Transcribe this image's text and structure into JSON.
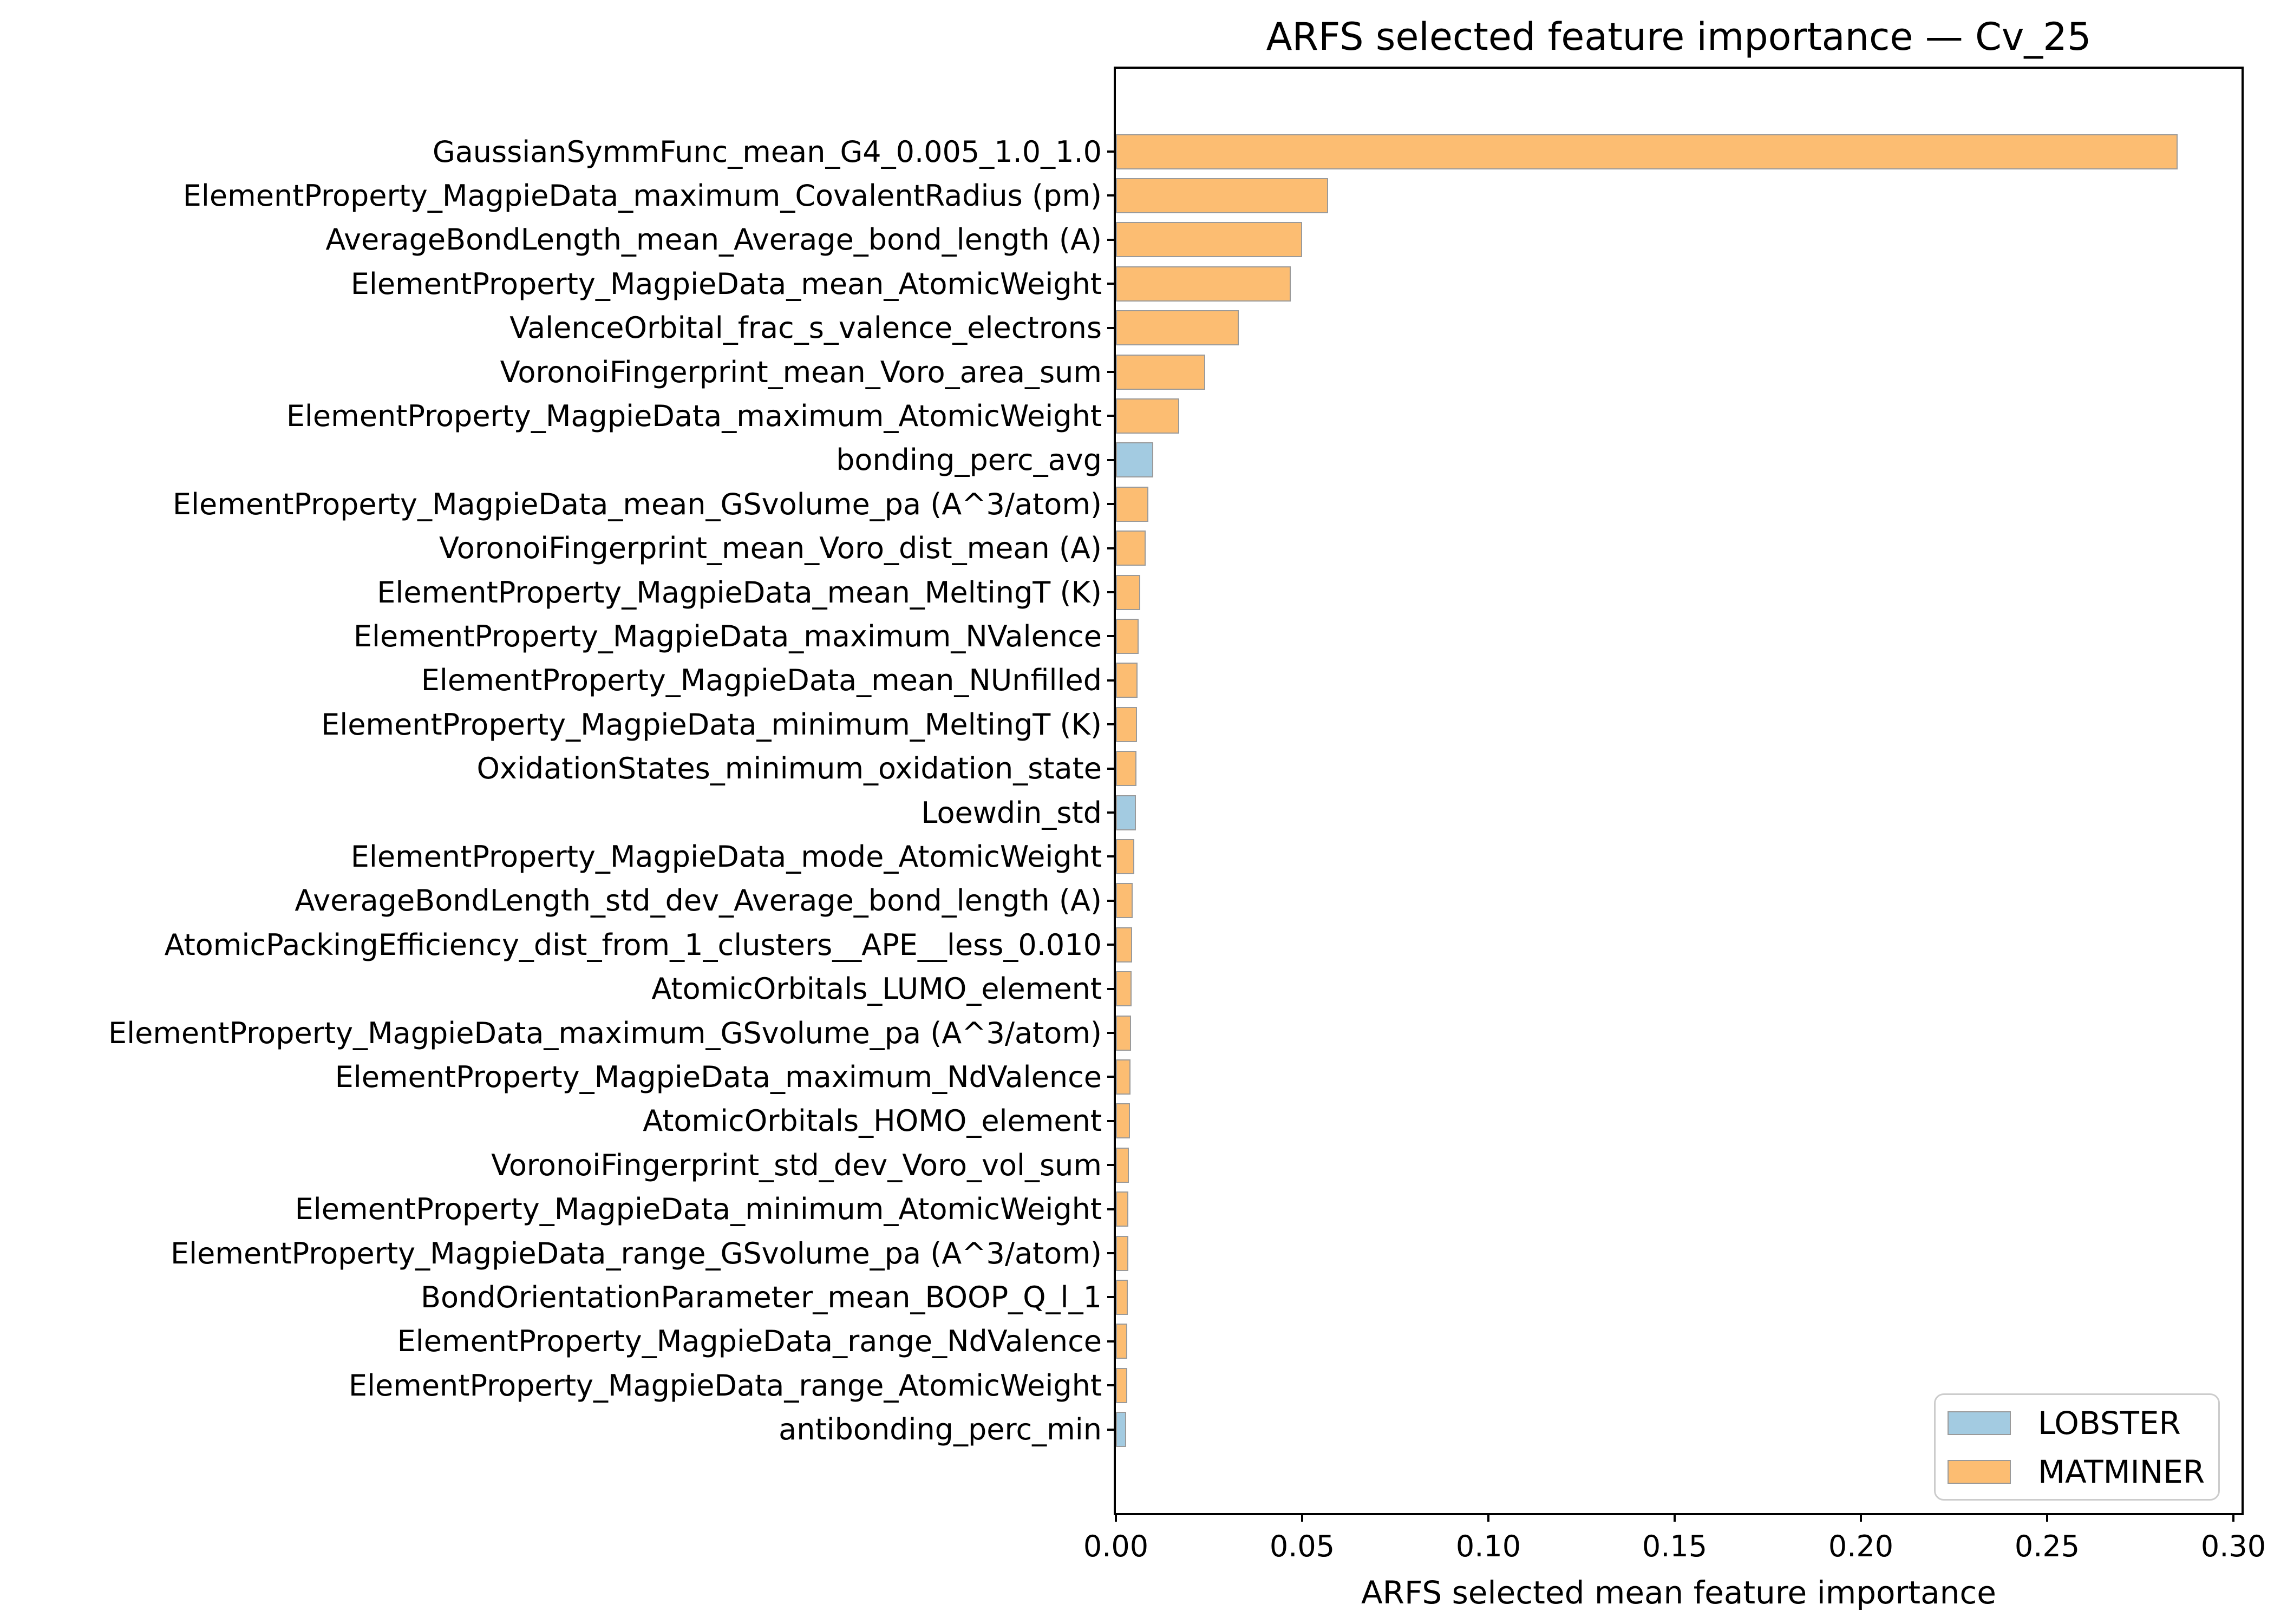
{
  "figure": {
    "title": "ARFS selected feature importance — Cv_25",
    "xlabel": "ARFS selected mean feature importance"
  },
  "legend": {
    "items": [
      {
        "label": "LOBSTER",
        "color": "#a3cbe1"
      },
      {
        "label": "MATMINER",
        "color": "#fcbd72"
      }
    ]
  },
  "chart_data": {
    "type": "bar",
    "orientation": "horizontal",
    "title": "ARFS selected feature importance — Cv_25",
    "xlabel": "ARFS selected mean feature importance",
    "ylabel": "",
    "xlim": [
      0,
      0.302
    ],
    "grid": false,
    "legend_position": "lower right",
    "x_tick_labels": [
      "0.00",
      "0.05",
      "0.10",
      "0.15",
      "0.20",
      "0.25",
      "0.30"
    ],
    "x_tick_values": [
      0.0,
      0.05,
      0.1,
      0.15,
      0.2,
      0.25,
      0.3
    ],
    "series_colors": {
      "LOBSTER": "#a3cbe1",
      "MATMINER": "#fcbd72"
    },
    "bar_edge_color": "#9a9a9a",
    "bars": [
      {
        "label": "GaussianSymmFunc_mean_G4_0.005_1.0_1.0",
        "value": 0.285,
        "group": "MATMINER"
      },
      {
        "label": "ElementProperty_MagpieData_maximum_CovalentRadius (pm)",
        "value": 0.057,
        "group": "MATMINER"
      },
      {
        "label": "AverageBondLength_mean_Average_bond_length (A)",
        "value": 0.05,
        "group": "MATMINER"
      },
      {
        "label": "ElementProperty_MagpieData_mean_AtomicWeight",
        "value": 0.047,
        "group": "MATMINER"
      },
      {
        "label": "ValenceOrbital_frac_s_valence_electrons",
        "value": 0.033,
        "group": "MATMINER"
      },
      {
        "label": "VoronoiFingerprint_mean_Voro_area_sum",
        "value": 0.024,
        "group": "MATMINER"
      },
      {
        "label": "ElementProperty_MagpieData_maximum_AtomicWeight",
        "value": 0.017,
        "group": "MATMINER"
      },
      {
        "label": "bonding_perc_avg",
        "value": 0.01,
        "group": "LOBSTER"
      },
      {
        "label": "ElementProperty_MagpieData_mean_GSvolume_pa (A^3/atom)",
        "value": 0.0087,
        "group": "MATMINER"
      },
      {
        "label": "VoronoiFingerprint_mean_Voro_dist_mean (A)",
        "value": 0.008,
        "group": "MATMINER"
      },
      {
        "label": "ElementProperty_MagpieData_mean_MeltingT (K)",
        "value": 0.0065,
        "group": "MATMINER"
      },
      {
        "label": "ElementProperty_MagpieData_maximum_NValence",
        "value": 0.0061,
        "group": "MATMINER"
      },
      {
        "label": "ElementProperty_MagpieData_mean_NUnfilled",
        "value": 0.0058,
        "group": "MATMINER"
      },
      {
        "label": "ElementProperty_MagpieData_minimum_MeltingT (K)",
        "value": 0.0057,
        "group": "MATMINER"
      },
      {
        "label": "OxidationStates_minimum_oxidation_state",
        "value": 0.0055,
        "group": "MATMINER"
      },
      {
        "label": "Loewdin_std",
        "value": 0.0054,
        "group": "LOBSTER"
      },
      {
        "label": "ElementProperty_MagpieData_mode_AtomicWeight",
        "value": 0.0049,
        "group": "MATMINER"
      },
      {
        "label": "AverageBondLength_std_dev_Average_bond_length (A)",
        "value": 0.0045,
        "group": "MATMINER"
      },
      {
        "label": "AtomicPackingEfficiency_dist_from_1_clusters__APE__less_0.010",
        "value": 0.0044,
        "group": "MATMINER"
      },
      {
        "label": "AtomicOrbitals_LUMO_element",
        "value": 0.0042,
        "group": "MATMINER"
      },
      {
        "label": "ElementProperty_MagpieData_maximum_GSvolume_pa (A^3/atom)",
        "value": 0.004,
        "group": "MATMINER"
      },
      {
        "label": "ElementProperty_MagpieData_maximum_NdValence",
        "value": 0.0039,
        "group": "MATMINER"
      },
      {
        "label": "AtomicOrbitals_HOMO_element",
        "value": 0.0038,
        "group": "MATMINER"
      },
      {
        "label": "VoronoiFingerprint_std_dev_Voro_vol_sum",
        "value": 0.0035,
        "group": "MATMINER"
      },
      {
        "label": "ElementProperty_MagpieData_minimum_AtomicWeight",
        "value": 0.0034,
        "group": "MATMINER"
      },
      {
        "label": "ElementProperty_MagpieData_range_GSvolume_pa (A^3/atom)",
        "value": 0.0033,
        "group": "MATMINER"
      },
      {
        "label": "BondOrientationParameter_mean_BOOP_Q_l_1",
        "value": 0.0032,
        "group": "MATMINER"
      },
      {
        "label": "ElementProperty_MagpieData_range_NdValence",
        "value": 0.0031,
        "group": "MATMINER"
      },
      {
        "label": "ElementProperty_MagpieData_range_AtomicWeight",
        "value": 0.003,
        "group": "MATMINER"
      },
      {
        "label": "antibonding_perc_min",
        "value": 0.0028,
        "group": "LOBSTER"
      }
    ]
  }
}
